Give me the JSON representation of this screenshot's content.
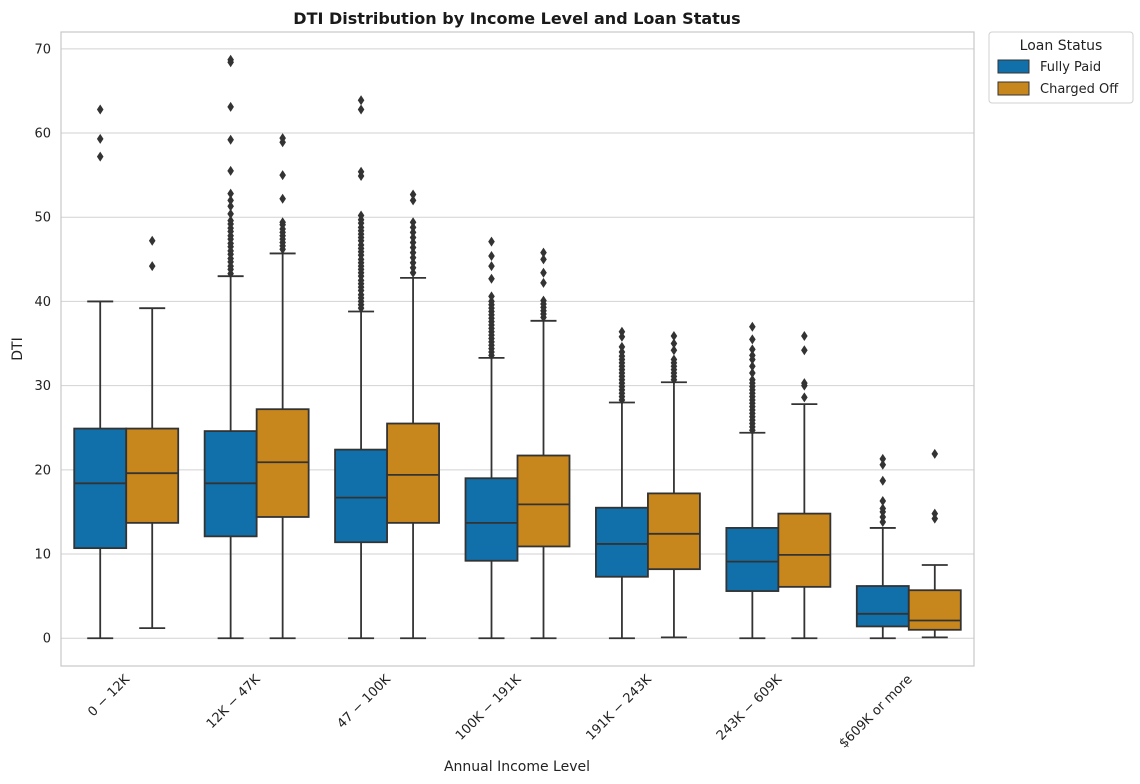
{
  "chart_data": {
    "type": "boxplot",
    "title": "DTI Distribution by Income Level and Loan Status",
    "xlabel": "Annual Income Level",
    "ylabel": "DTI",
    "ylim": [
      -3.3,
      72
    ],
    "yticks": [
      0,
      10,
      20,
      30,
      40,
      50,
      60,
      70
    ],
    "grid": "horizontal",
    "categories": [
      "$0 - $12K",
      "$12K - $47K",
      "$47 - $100K",
      "$100K - $191K",
      "$191K - $243K",
      "$243K - $609K",
      "$609K or more"
    ],
    "category_labels_rendered": [
      "0 − 12K",
      "12K − 47K",
      "47 − 100K",
      "100K − 191K",
      "191K − 243K",
      "243K − 609K",
      "$609K or more"
    ],
    "legend": {
      "title": "Loan Status",
      "placement": "outside-top-right"
    },
    "series": [
      {
        "name": "Fully Paid",
        "color": "#1170aa",
        "boxes": [
          {
            "whislo": 0,
            "q1": 10.7,
            "med": 18.4,
            "q3": 24.9,
            "whishi": 40.0,
            "fliers": [
              57.2,
              59.3,
              62.8
            ]
          },
          {
            "whislo": 0,
            "q1": 12.1,
            "med": 18.4,
            "q3": 24.6,
            "whishi": 43.0,
            "fliers": [
              43.3,
              43.8,
              44.2,
              44.7,
              45.1,
              45.6,
              46.0,
              46.5,
              46.9,
              47.4,
              47.8,
              48.3,
              48.7,
              49.2,
              49.6,
              50.4,
              51.3,
              52.0,
              52.8,
              55.5,
              59.2,
              63.1,
              68.4,
              68.7
            ]
          },
          {
            "whislo": 0,
            "q1": 11.4,
            "med": 16.7,
            "q3": 22.4,
            "whishi": 38.8,
            "fliers": [
              39.2,
              39.6,
              40.0,
              40.4,
              40.8,
              41.3,
              41.7,
              42.1,
              42.5,
              43.0,
              43.4,
              43.8,
              44.2,
              44.6,
              45.0,
              45.5,
              45.9,
              46.3,
              46.7,
              47.2,
              47.6,
              48.0,
              48.4,
              48.8,
              49.3,
              49.7,
              50.2,
              54.9,
              55.4,
              62.8,
              63.9
            ]
          },
          {
            "whislo": 0,
            "q1": 9.2,
            "med": 13.7,
            "q3": 19.0,
            "whishi": 33.3,
            "fliers": [
              33.6,
              34.0,
              34.4,
              34.8,
              35.2,
              35.6,
              36.0,
              36.4,
              36.8,
              37.2,
              37.6,
              38.0,
              38.4,
              38.8,
              39.2,
              39.6,
              40.0,
              40.6,
              42.7,
              44.2,
              45.4,
              47.1
            ]
          },
          {
            "whislo": 0,
            "q1": 7.3,
            "med": 11.2,
            "q3": 15.5,
            "whishi": 28.0,
            "fliers": [
              28.3,
              28.7,
              29.1,
              29.5,
              29.9,
              30.3,
              30.7,
              31.1,
              31.5,
              31.9,
              32.3,
              32.7,
              33.1,
              33.5,
              34.0,
              34.6,
              35.8,
              36.4
            ]
          },
          {
            "whislo": 0,
            "q1": 5.6,
            "med": 9.1,
            "q3": 13.1,
            "whishi": 24.4,
            "fliers": [
              24.7,
              25.1,
              25.5,
              25.9,
              26.3,
              26.7,
              27.1,
              27.5,
              27.9,
              28.3,
              28.7,
              29.1,
              29.5,
              29.9,
              30.3,
              30.7,
              31.5,
              32.3,
              33.1,
              33.6,
              34.3,
              35.5,
              37.0
            ]
          },
          {
            "whislo": 0,
            "q1": 1.4,
            "med": 2.9,
            "q3": 6.2,
            "whishi": 13.1,
            "fliers": [
              13.8,
              14.4,
              15.0,
              15.4,
              16.3,
              18.7,
              20.6,
              21.3
            ]
          }
        ]
      },
      {
        "name": "Charged Off",
        "color": "#c8871d",
        "boxes": [
          {
            "whislo": 1.2,
            "q1": 13.7,
            "med": 19.6,
            "q3": 24.9,
            "whishi": 39.2,
            "fliers": [
              44.2,
              47.2
            ]
          },
          {
            "whislo": 0,
            "q1": 14.4,
            "med": 20.9,
            "q3": 27.2,
            "whishi": 45.7,
            "fliers": [
              46.2,
              46.6,
              47.0,
              47.4,
              47.8,
              48.2,
              48.6,
              49.1,
              49.4,
              52.2,
              55.0,
              58.9,
              59.4
            ]
          },
          {
            "whislo": 0,
            "q1": 13.7,
            "med": 19.4,
            "q3": 25.5,
            "whishi": 42.8,
            "fliers": [
              43.4,
              44.0,
              44.6,
              45.2,
              45.8,
              46.4,
              47.0,
              47.6,
              48.2,
              48.8,
              49.4,
              52.0,
              52.7
            ]
          },
          {
            "whislo": 0,
            "q1": 10.9,
            "med": 15.9,
            "q3": 21.7,
            "whishi": 37.7,
            "fliers": [
              38.1,
              38.5,
              38.9,
              39.3,
              39.7,
              40.1,
              42.2,
              43.4,
              45.0,
              45.8
            ]
          },
          {
            "whislo": 0.1,
            "q1": 8.2,
            "med": 12.4,
            "q3": 17.2,
            "whishi": 30.4,
            "fliers": [
              30.7,
              31.1,
              31.5,
              31.9,
              32.3,
              32.7,
              33.1,
              34.2,
              35.0,
              35.9
            ]
          },
          {
            "whislo": 0,
            "q1": 6.1,
            "med": 9.9,
            "q3": 14.8,
            "whishi": 27.8,
            "fliers": [
              28.6,
              30.0,
              30.3,
              34.2,
              35.9
            ]
          },
          {
            "whislo": 0.1,
            "q1": 1.0,
            "med": 2.1,
            "q3": 5.7,
            "whishi": 8.7,
            "fliers": [
              14.2,
              14.8,
              21.9
            ]
          }
        ]
      }
    ]
  }
}
